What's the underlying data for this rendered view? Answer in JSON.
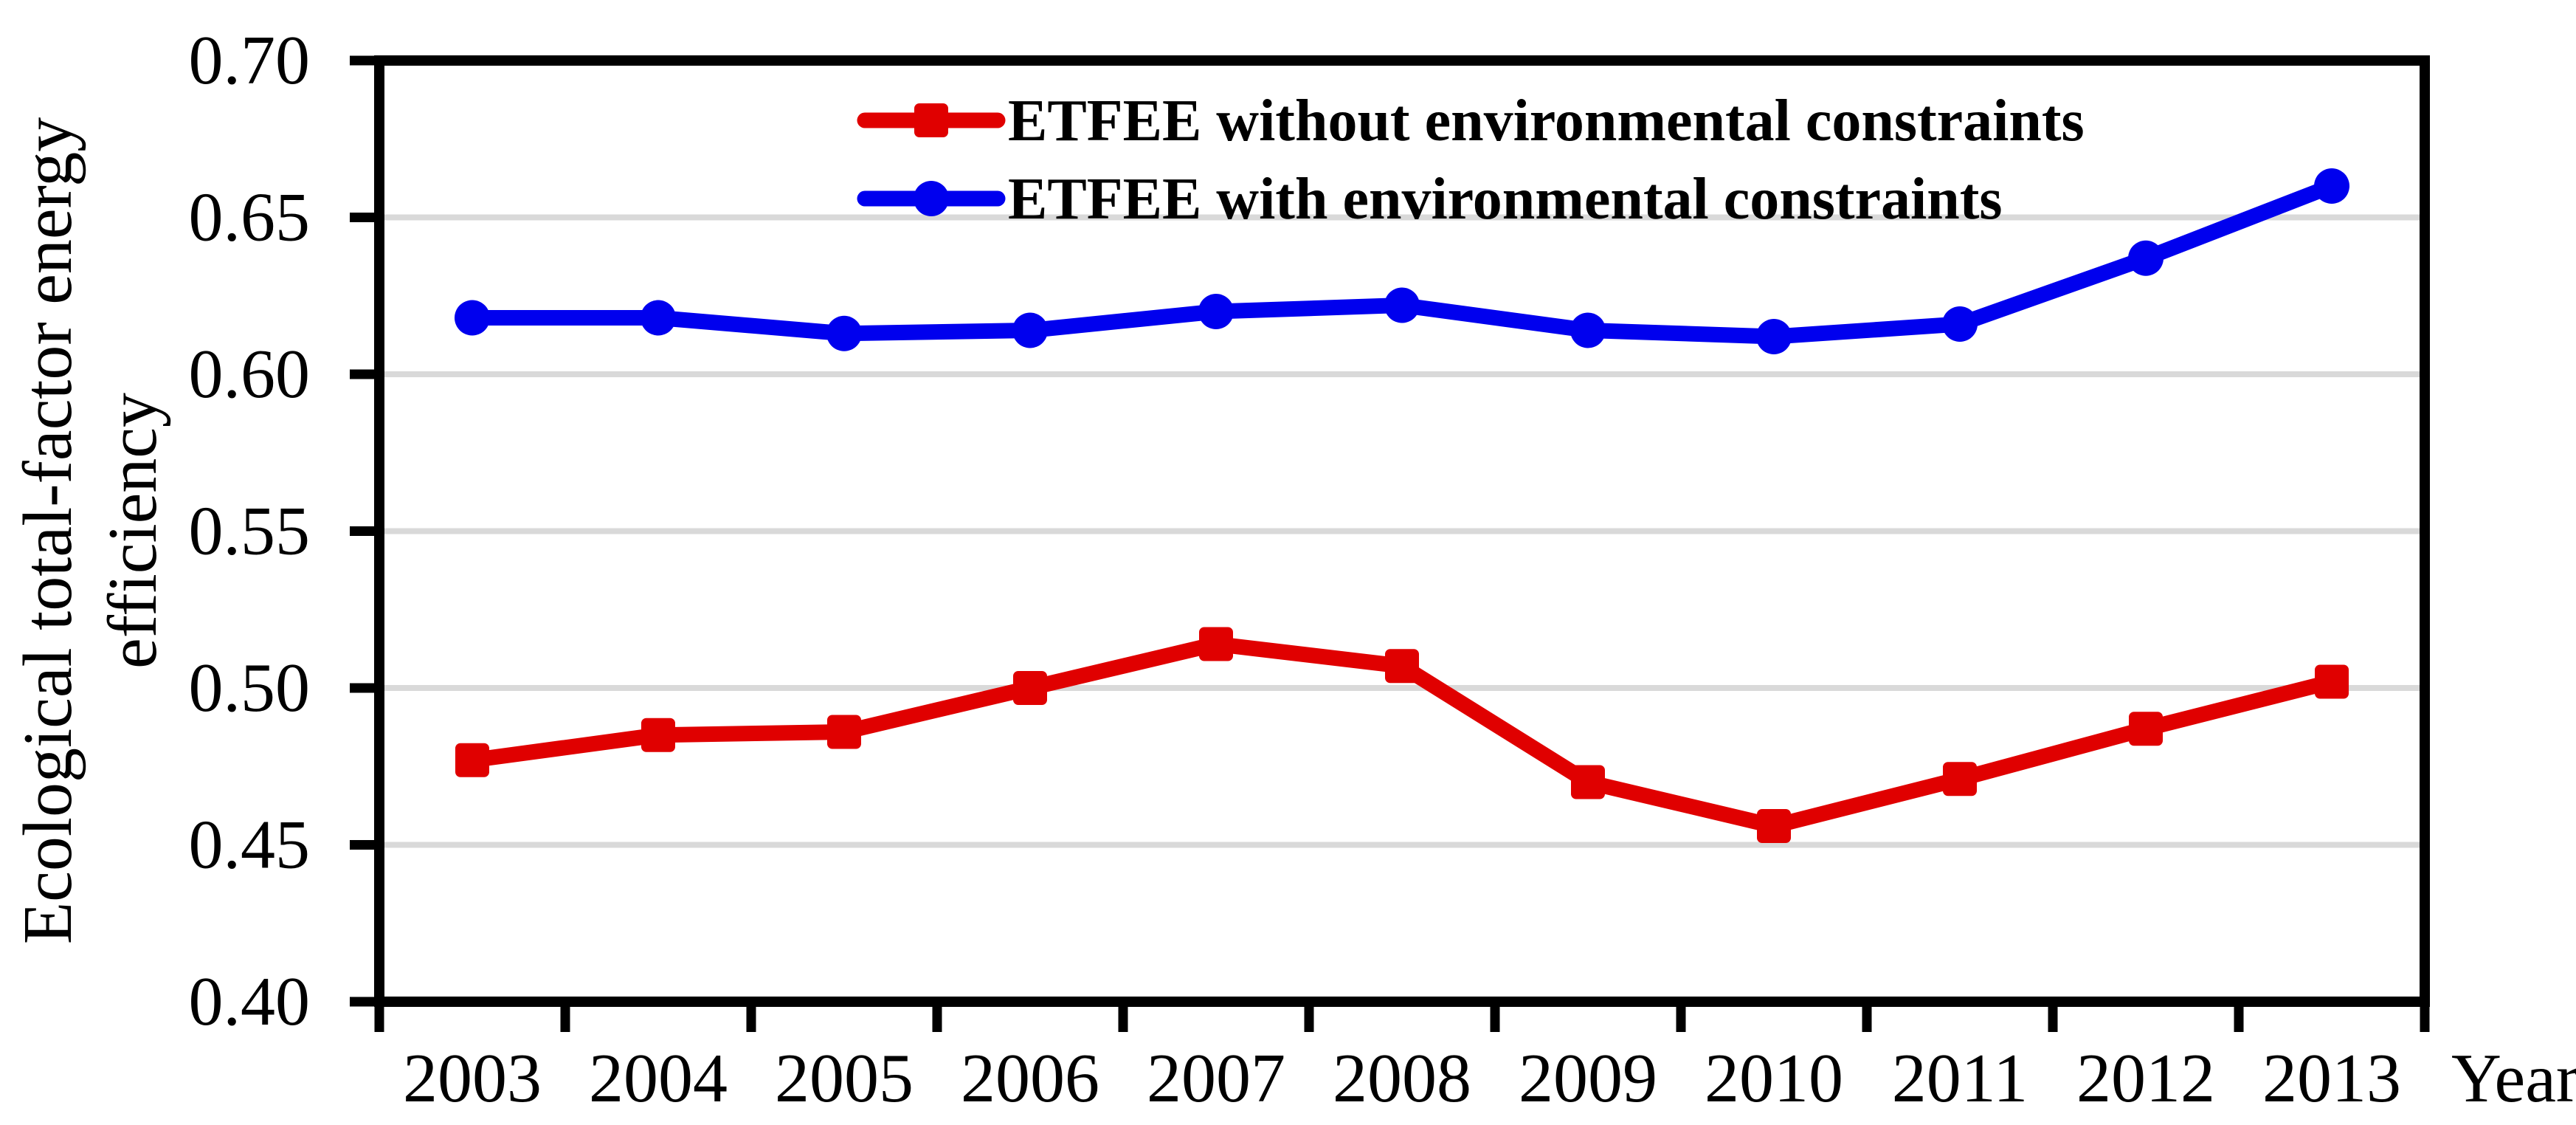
{
  "chart_data": {
    "type": "line",
    "title": "",
    "xlabel": "Year",
    "ylabel": "Ecological total-factor energy efficiency",
    "ylabel_lines": [
      "Ecological total-factor energy",
      "efficiency"
    ],
    "categories": [
      "2003",
      "2004",
      "2005",
      "2006",
      "2007",
      "2008",
      "2009",
      "2010",
      "2011",
      "2012",
      "2013"
    ],
    "series": [
      {
        "name": "ETFEE without environmental constraints",
        "color": "#e00000",
        "marker": "square",
        "values": [
          0.477,
          0.485,
          0.486,
          0.5,
          0.514,
          0.507,
          0.47,
          0.456,
          0.471,
          0.487,
          0.502
        ]
      },
      {
        "name": "ETFEE with environmental constraints",
        "color": "#0000ee",
        "marker": "circle",
        "values": [
          0.618,
          0.618,
          0.613,
          0.614,
          0.62,
          0.622,
          0.614,
          0.612,
          0.616,
          0.637,
          0.66
        ]
      }
    ],
    "ylim": [
      0.4,
      0.7
    ],
    "y_ticks": [
      "0.40",
      "0.45",
      "0.50",
      "0.55",
      "0.60",
      "0.65",
      "0.70"
    ],
    "y_tick_step": 0.05,
    "grid": "horizontal",
    "gridline_color": "#d9d9d9",
    "axis_color": "#000000",
    "background_color": "#ffffff",
    "legend_position": "top-inside"
  }
}
